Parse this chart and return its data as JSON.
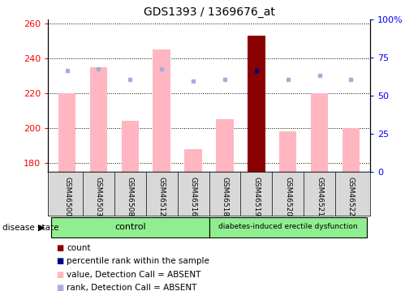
{
  "title": "GDS1393 / 1369676_at",
  "samples": [
    "GSM46500",
    "GSM46503",
    "GSM46508",
    "GSM46512",
    "GSM46516",
    "GSM46518",
    "GSM46519",
    "GSM46520",
    "GSM46521",
    "GSM46522"
  ],
  "values": [
    220,
    235,
    204,
    245,
    188,
    205,
    253,
    198,
    220,
    200
  ],
  "ranks": [
    233,
    234,
    228,
    234,
    227,
    228,
    233,
    228,
    230,
    228
  ],
  "count_bar_idx": 6,
  "ylim_left": [
    175,
    262
  ],
  "ylim_right": [
    0,
    100
  ],
  "yticks_left": [
    180,
    200,
    220,
    240,
    260
  ],
  "yticks_right": [
    0,
    25,
    50,
    75,
    100
  ],
  "ytick_labels_right": [
    "0",
    "25",
    "50",
    "75",
    "100%"
  ],
  "bar_color_normal": "#FFB6C1",
  "bar_color_highlight": "#8B0000",
  "rank_marker_color": "#AAAADD",
  "rank_marker_color_highlight": "#00008B",
  "control_group": [
    0,
    1,
    2,
    3,
    4
  ],
  "disease_group": [
    5,
    6,
    7,
    8,
    9
  ],
  "control_label": "control",
  "disease_label": "diabetes-induced erectile dysfunction",
  "group_label": "disease state",
  "legend_colors": [
    "#8B0000",
    "#00008B",
    "#FFB6C1",
    "#AAAADD"
  ],
  "legend_labels": [
    "count",
    "percentile rank within the sample",
    "value, Detection Call = ABSENT",
    "rank, Detection Call = ABSENT"
  ]
}
